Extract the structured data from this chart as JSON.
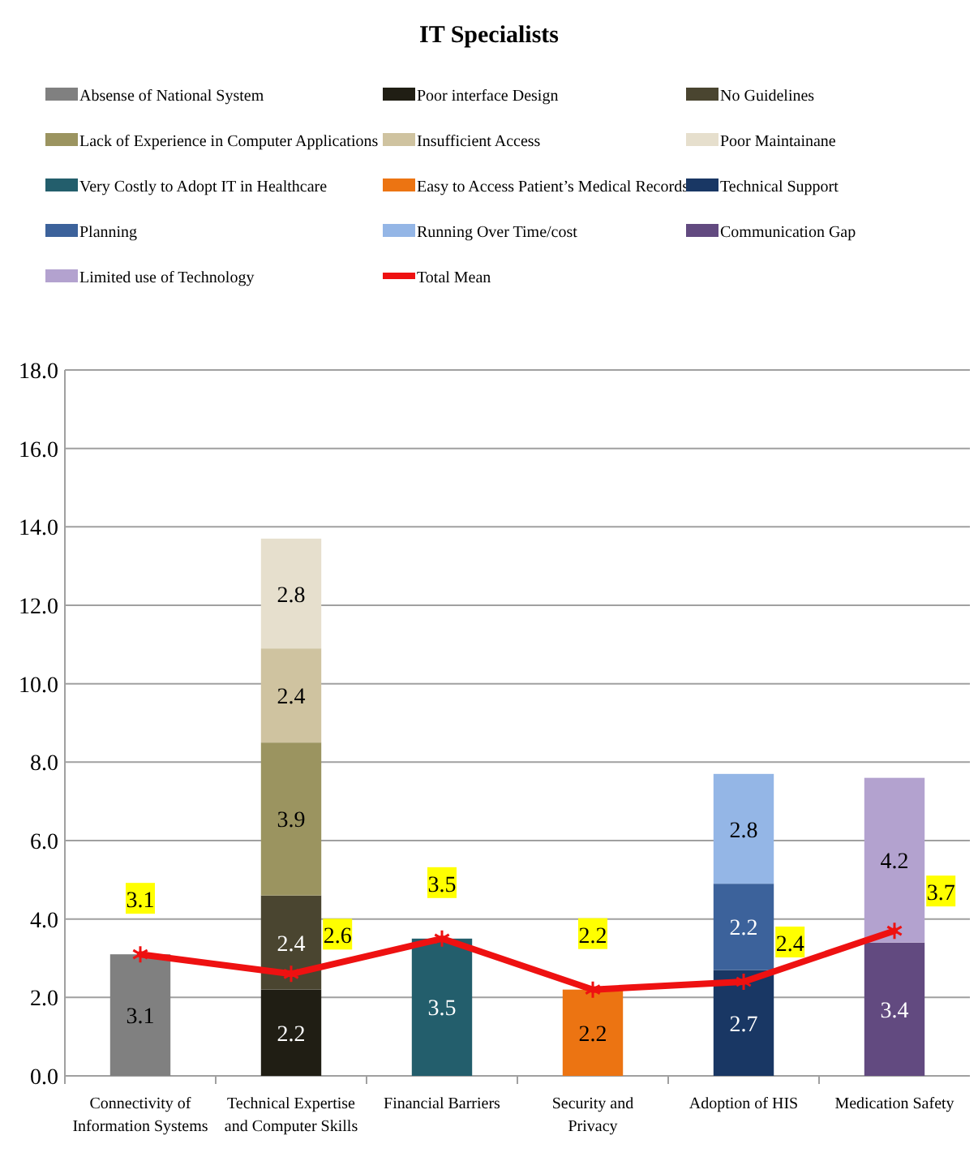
{
  "chart_data": {
    "type": "bar",
    "title": "IT Specialists",
    "stacked": true,
    "data_labels": true,
    "grid": "y",
    "legend": "top",
    "marker": "cross",
    "categories": [
      "Connectivity of Information Systems",
      "Technical Expertise and Computer Skills",
      "Financial Barriers",
      "Security and Privacy",
      "Adoption of HIS",
      "Medication Safety"
    ],
    "ylim": [
      0,
      18
    ],
    "yticks": [
      {
        "value": 0,
        "label": "0.0"
      },
      {
        "value": 2,
        "label": "2.0"
      },
      {
        "value": 4,
        "label": "4.0"
      },
      {
        "value": 6,
        "label": "6.0"
      },
      {
        "value": 8,
        "label": "8.0"
      },
      {
        "value": 10,
        "label": "10.0"
      },
      {
        "value": 12,
        "label": "12.0"
      },
      {
        "value": 14,
        "label": "14.0"
      },
      {
        "value": 16,
        "label": "16.0"
      },
      {
        "value": 18,
        "label": "18.0"
      }
    ],
    "series": [
      {
        "name": "Absense of National System",
        "color": "#808080",
        "values": [
          3.1,
          null,
          null,
          null,
          null,
          null
        ]
      },
      {
        "name": "Poor interface Design",
        "color": "#201e14",
        "values": [
          null,
          2.2,
          null,
          null,
          null,
          null
        ]
      },
      {
        "name": "No Guidelines",
        "color": "#4a4530",
        "values": [
          null,
          2.4,
          null,
          null,
          null,
          null
        ]
      },
      {
        "name": "Lack of Experience in Computer Applications",
        "color": "#9b9460",
        "values": [
          null,
          3.9,
          null,
          null,
          null,
          null
        ]
      },
      {
        "name": "Insufficient Access",
        "color": "#cfc3a0",
        "values": [
          null,
          2.4,
          null,
          null,
          null,
          null
        ]
      },
      {
        "name": "Poor Maintainane",
        "color": "#e6dfcd",
        "values": [
          null,
          2.8,
          null,
          null,
          null,
          null
        ]
      },
      {
        "name": "Very Costly to Adopt IT in Healthcare",
        "color": "#235e6c",
        "values": [
          null,
          null,
          3.5,
          null,
          null,
          null
        ]
      },
      {
        "name": "Easy to Access Patient’s Medical Records",
        "color": "#ec7412",
        "values": [
          null,
          null,
          null,
          2.2,
          null,
          null
        ]
      },
      {
        "name": "Technical Support",
        "color": "#193764",
        "values": [
          null,
          null,
          null,
          null,
          2.7,
          null
        ]
      },
      {
        "name": "Planning",
        "color": "#3c629b",
        "values": [
          null,
          null,
          null,
          null,
          2.2,
          null
        ]
      },
      {
        "name": "Running Over Time/cost",
        "color": "#94b6e6",
        "values": [
          null,
          null,
          null,
          null,
          2.8,
          null
        ]
      },
      {
        "name": "Communication Gap",
        "color": "#624a80",
        "values": [
          null,
          null,
          null,
          null,
          null,
          3.4
        ]
      },
      {
        "name": "Limited use of Technology",
        "color": "#b3a2cf",
        "values": [
          null,
          null,
          null,
          null,
          null,
          4.2
        ]
      },
      {
        "name": "Total Mean",
        "type": "line",
        "color": "#ee1111",
        "values": [
          3.1,
          2.6,
          3.5,
          2.2,
          2.4,
          3.7
        ]
      }
    ]
  }
}
